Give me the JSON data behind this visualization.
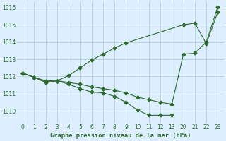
{
  "background_color": "#ddeeff",
  "grid_color": "#aacccc",
  "line_color": "#2d6a2d",
  "xlabel": "Graphe pression niveau de la mer (hPa)",
  "ylim": [
    1009.3,
    1016.3
  ],
  "yticks": [
    1010,
    1011,
    1012,
    1013,
    1014,
    1015,
    1016
  ],
  "xtick_labels": [
    "0",
    "1",
    "2",
    "3",
    "4",
    "5",
    "6",
    "7",
    "8",
    "9",
    "10",
    "11",
    "12",
    "13",
    "20",
    "21",
    "22",
    "23"
  ],
  "n_xticks": 18,
  "series_up_x": [
    0,
    1,
    2,
    3,
    4,
    5,
    6,
    7,
    8,
    9,
    14,
    15,
    16,
    17
  ],
  "series_up_y": [
    1012.2,
    1011.95,
    1011.7,
    1011.75,
    1012.05,
    1012.5,
    1012.95,
    1013.3,
    1013.65,
    1013.95,
    1015.0,
    1015.1,
    1013.9,
    1015.75
  ],
  "series_down_x": [
    0,
    1,
    2,
    3,
    4,
    5,
    6,
    7,
    8,
    9,
    10,
    11,
    12,
    13
  ],
  "series_down_y": [
    1012.2,
    1011.95,
    1011.65,
    1011.75,
    1011.55,
    1011.3,
    1011.1,
    1011.05,
    1010.85,
    1010.5,
    1010.05,
    1009.75,
    1009.75,
    1009.75
  ],
  "series_mid_x": [
    0,
    1,
    2,
    3,
    4,
    5,
    6,
    7,
    8,
    9,
    10,
    11,
    12,
    13,
    14,
    15,
    16,
    17
  ],
  "series_mid_y": [
    1012.2,
    1011.95,
    1011.75,
    1011.75,
    1011.65,
    1011.55,
    1011.4,
    1011.3,
    1011.2,
    1011.05,
    1010.8,
    1010.65,
    1010.5,
    1010.4,
    1013.3,
    1013.35,
    1014.0,
    1016.05
  ],
  "marker": "D",
  "markersize": 2.5
}
